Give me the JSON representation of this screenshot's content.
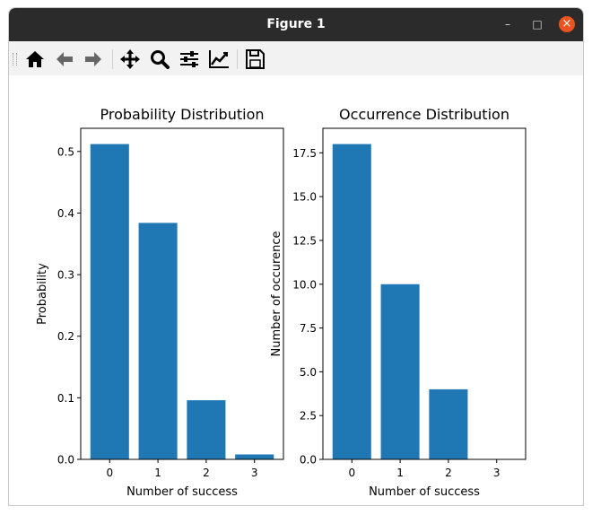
{
  "window": {
    "title": "Figure 1"
  },
  "toolbar": {
    "buttons": [
      {
        "name": "home-icon"
      },
      {
        "name": "back-arrow-icon"
      },
      {
        "name": "forward-arrow-icon"
      },
      {
        "name": "pan-icon"
      },
      {
        "name": "zoom-icon"
      },
      {
        "name": "configure-subplots-icon"
      },
      {
        "name": "edit-axis-icon"
      },
      {
        "name": "save-icon"
      }
    ]
  },
  "colors": {
    "bar": "#1f77b4"
  },
  "chart_data": [
    {
      "type": "bar",
      "title": "Probability Distribution",
      "xlabel": "Number of success",
      "ylabel": "Probability",
      "categories": [
        "0",
        "1",
        "2",
        "3"
      ],
      "values": [
        0.512,
        0.384,
        0.096,
        0.008
      ],
      "ylim": [
        0,
        0.5376
      ],
      "yticks": [
        "0.0",
        "0.1",
        "0.2",
        "0.3",
        "0.4",
        "0.5"
      ],
      "ytick_values": [
        0,
        0.1,
        0.2,
        0.3,
        0.4,
        0.5
      ]
    },
    {
      "type": "bar",
      "title": "Occurrence Distribution",
      "xlabel": "Number of success",
      "ylabel": "Number of occurence",
      "categories": [
        "0",
        "1",
        "2",
        "3"
      ],
      "values": [
        18,
        10,
        4,
        0
      ],
      "ylim": [
        0,
        18.9
      ],
      "yticks": [
        "0.0",
        "2.5",
        "5.0",
        "7.5",
        "10.0",
        "12.5",
        "15.0",
        "17.5"
      ],
      "ytick_values": [
        0,
        2.5,
        5,
        7.5,
        10,
        12.5,
        15,
        17.5
      ]
    }
  ]
}
